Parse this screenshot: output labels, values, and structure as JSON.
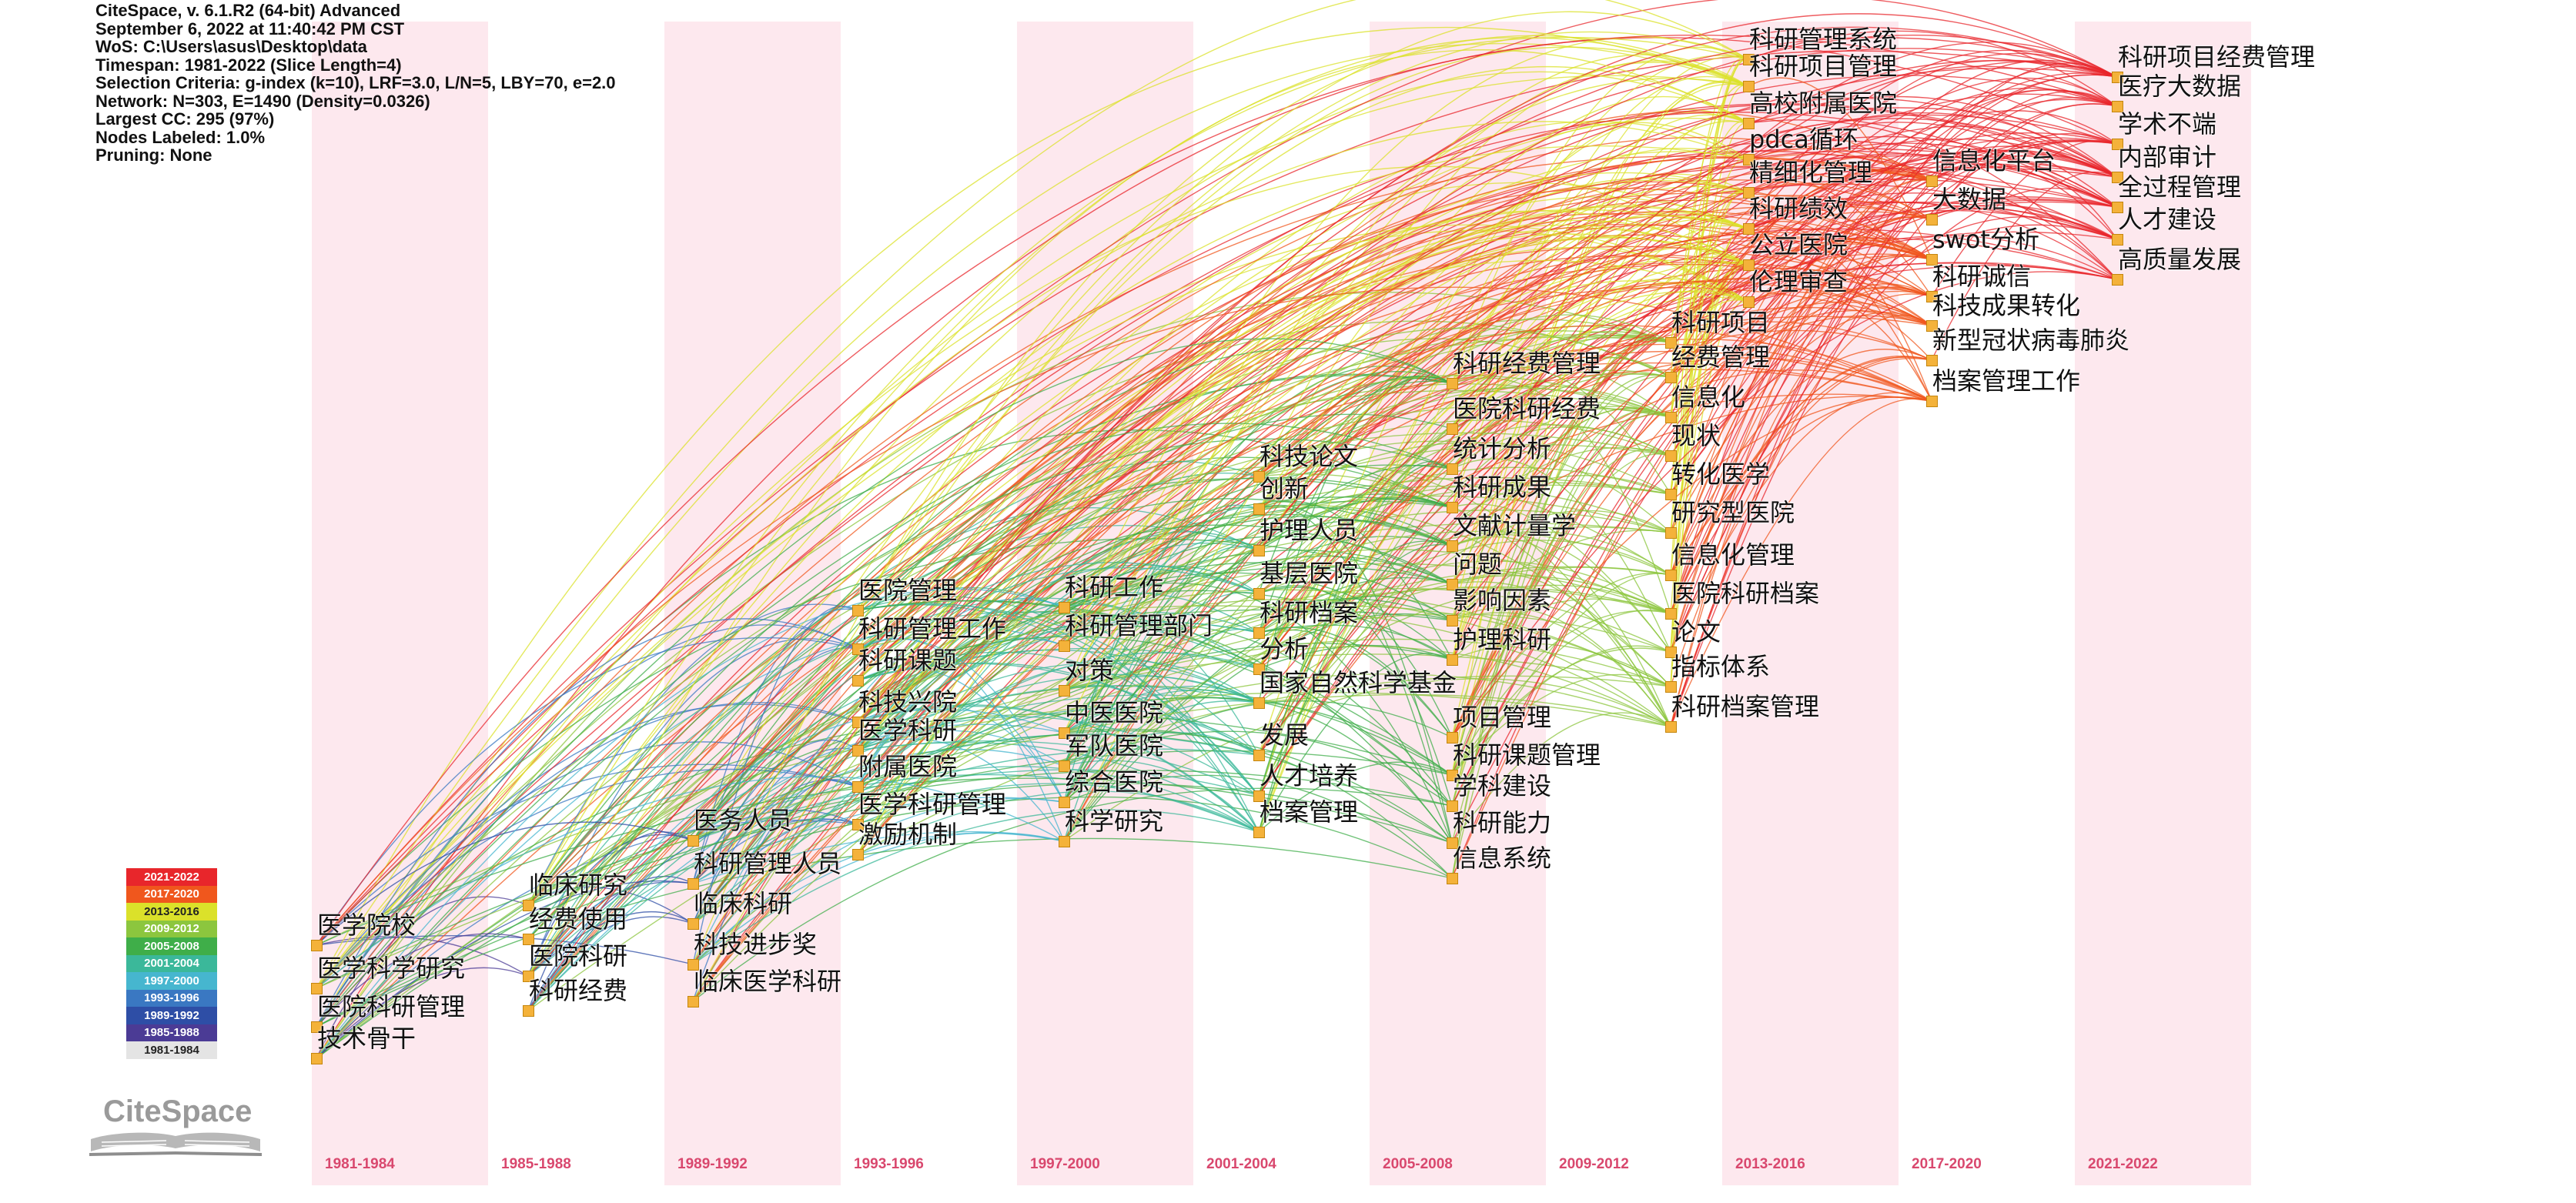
{
  "info_lines": [
    "CiteSpace, v. 6.1.R2 (64-bit) Advanced",
    "September 6, 2022 at 11:40:42 PM CST",
    "WoS: C:\\Users\\asus\\Desktop\\data",
    "Timespan: 1981-2022 (Slice Length=4)",
    "Selection Criteria: g-index (k=10), LRF=3.0, L/N=5, LBY=70, e=2.0",
    "Network: N=303, E=1490 (Density=0.0326)",
    "Largest CC: 295 (97%)",
    "Nodes Labeled: 1.0%",
    "Pruning: None"
  ],
  "periods": [
    {
      "label": "1981-1984",
      "shaded": true
    },
    {
      "label": "1985-1988",
      "shaded": false
    },
    {
      "label": "1989-1992",
      "shaded": true
    },
    {
      "label": "1993-1996",
      "shaded": false
    },
    {
      "label": "1997-2000",
      "shaded": true
    },
    {
      "label": "2001-2004",
      "shaded": false
    },
    {
      "label": "2005-2008",
      "shaded": true
    },
    {
      "label": "2009-2012",
      "shaded": false
    },
    {
      "label": "2013-2016",
      "shaded": true
    },
    {
      "label": "2017-2020",
      "shaded": false
    },
    {
      "label": "2021-2022",
      "shaded": true
    }
  ],
  "legend": [
    {
      "label": "2021-2022",
      "color": "#e8262b",
      "text_color": "#ffffff"
    },
    {
      "label": "2017-2020",
      "color": "#f0571d",
      "text_color": "#ffffff"
    },
    {
      "label": "2013-2016",
      "color": "#dbe12a",
      "text_color": "#222222"
    },
    {
      "label": "2009-2012",
      "color": "#8cc63e",
      "text_color": "#ffffff"
    },
    {
      "label": "2005-2008",
      "color": "#3fae49",
      "text_color": "#ffffff"
    },
    {
      "label": "2001-2004",
      "color": "#3bb89a",
      "text_color": "#ffffff"
    },
    {
      "label": "1997-2000",
      "color": "#46b6cf",
      "text_color": "#ffffff"
    },
    {
      "label": "1993-1996",
      "color": "#3a78c2",
      "text_color": "#ffffff"
    },
    {
      "label": "1989-1992",
      "color": "#2e4ea6",
      "text_color": "#ffffff"
    },
    {
      "label": "1985-1988",
      "color": "#4b3b95",
      "text_color": "#ffffff"
    },
    {
      "label": "1981-1984",
      "color": "#e4e4e4",
      "text_color": "#222222"
    }
  ],
  "logo_text": "CiteSpace",
  "nodes": [
    {
      "label": "医学院校",
      "period": 0
    },
    {
      "label": "医学科学研究",
      "period": 0
    },
    {
      "label": "医院科研管理",
      "period": 0
    },
    {
      "label": "技术骨干",
      "period": 0
    },
    {
      "label": "临床研究",
      "period": 1
    },
    {
      "label": "经费使用",
      "period": 1
    },
    {
      "label": "医院科研",
      "period": 1
    },
    {
      "label": "科研经费",
      "period": 1
    },
    {
      "label": "医务人员",
      "period": 2
    },
    {
      "label": "科研管理人员",
      "period": 2
    },
    {
      "label": "临床科研",
      "period": 2
    },
    {
      "label": "科技进步奖",
      "period": 2
    },
    {
      "label": "临床医学科研",
      "period": 2
    },
    {
      "label": "医院管理",
      "period": 3
    },
    {
      "label": "科研管理工作",
      "period": 3
    },
    {
      "label": "科研课题",
      "period": 3
    },
    {
      "label": "科技兴院",
      "period": 3
    },
    {
      "label": "医学科研",
      "period": 3
    },
    {
      "label": "附属医院",
      "period": 3
    },
    {
      "label": "医学科研管理",
      "period": 3
    },
    {
      "label": "激励机制",
      "period": 3
    },
    {
      "label": "科研工作",
      "period": 4
    },
    {
      "label": "科研管理部门",
      "period": 4
    },
    {
      "label": "对策",
      "period": 4
    },
    {
      "label": "中医医院",
      "period": 4
    },
    {
      "label": "军队医院",
      "period": 4
    },
    {
      "label": "综合医院",
      "period": 4
    },
    {
      "label": "科学研究",
      "period": 4
    },
    {
      "label": "科技论文",
      "period": 5
    },
    {
      "label": "创新",
      "period": 5
    },
    {
      "label": "护理人员",
      "period": 5
    },
    {
      "label": "基层医院",
      "period": 5
    },
    {
      "label": "科研档案",
      "period": 5
    },
    {
      "label": "分析",
      "period": 5
    },
    {
      "label": "国家自然科学基金",
      "period": 5
    },
    {
      "label": "发展",
      "period": 5
    },
    {
      "label": "人才培养",
      "period": 5
    },
    {
      "label": "档案管理",
      "period": 5
    },
    {
      "label": "科研经费管理",
      "period": 6
    },
    {
      "label": "医院科研经费",
      "period": 6
    },
    {
      "label": "统计分析",
      "period": 6
    },
    {
      "label": "科研成果",
      "period": 6
    },
    {
      "label": "文献计量学",
      "period": 6
    },
    {
      "label": "问题",
      "period": 6
    },
    {
      "label": "影响因素",
      "period": 6
    },
    {
      "label": "护理科研",
      "period": 6
    },
    {
      "label": "项目管理",
      "period": 6
    },
    {
      "label": "科研课题管理",
      "period": 6
    },
    {
      "label": "学科建设",
      "period": 6
    },
    {
      "label": "科研能力",
      "period": 6
    },
    {
      "label": "信息系统",
      "period": 6
    },
    {
      "label": "科研项目",
      "period": 7
    },
    {
      "label": "经费管理",
      "period": 7
    },
    {
      "label": "信息化",
      "period": 7
    },
    {
      "label": "现状",
      "period": 7
    },
    {
      "label": "转化医学",
      "period": 7
    },
    {
      "label": "研究型医院",
      "period": 7
    },
    {
      "label": "信息化管理",
      "period": 7
    },
    {
      "label": "医院科研档案",
      "period": 7
    },
    {
      "label": "论文",
      "period": 7
    },
    {
      "label": "指标体系",
      "period": 7
    },
    {
      "label": "科研档案管理",
      "period": 7
    },
    {
      "label": "科研管理系统",
      "period": 8
    },
    {
      "label": "科研项目管理",
      "period": 8
    },
    {
      "label": "高校附属医院",
      "period": 8
    },
    {
      "label": "pdca循环",
      "period": 8
    },
    {
      "label": "精细化管理",
      "period": 8
    },
    {
      "label": "科研绩效",
      "period": 8
    },
    {
      "label": "公立医院",
      "period": 8
    },
    {
      "label": "伦理审查",
      "period": 8
    },
    {
      "label": "信息化平台",
      "period": 9
    },
    {
      "label": "大数据",
      "period": 9
    },
    {
      "label": "swot分析",
      "period": 9
    },
    {
      "label": "科研诚信",
      "period": 9
    },
    {
      "label": "科技成果转化",
      "period": 9
    },
    {
      "label": "新型冠状病毒肺炎",
      "period": 9
    },
    {
      "label": "档案管理工作",
      "period": 9
    },
    {
      "label": "科研项目经费管理",
      "period": 10
    },
    {
      "label": "医疗大数据",
      "period": 10
    },
    {
      "label": "学术不端",
      "period": 10
    },
    {
      "label": "内部审计",
      "period": 10
    },
    {
      "label": "全过程管理",
      "period": 10
    },
    {
      "label": "人才建设",
      "period": 10
    },
    {
      "label": "高质量发展",
      "period": 10
    }
  ]
}
